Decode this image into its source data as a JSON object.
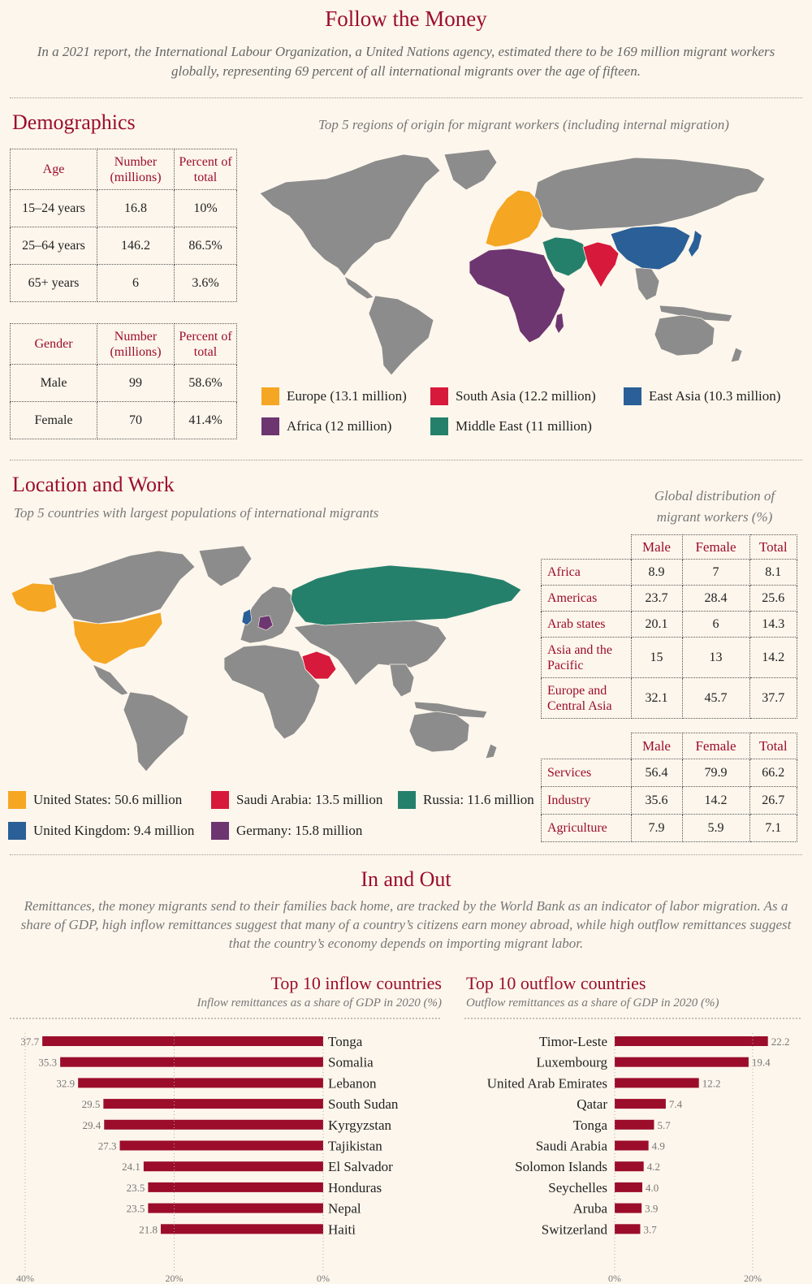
{
  "header": {
    "title": "Follow the Money",
    "intro": "In a 2021 report, the International Labour Organization, a United Nations agency, estimated there to be 169 million migrant workers globally, representing 69 percent of all international migrants over the age of fifteen."
  },
  "demographics": {
    "title": "Demographics",
    "age_table": {
      "headers": [
        "Age",
        "Number (millions)",
        "Percent of total"
      ],
      "rows": [
        [
          "15–24 years",
          "16.8",
          "10%"
        ],
        [
          "25–64 years",
          "146.2",
          "86.5%"
        ],
        [
          "65+ years",
          "6",
          "3.6%"
        ]
      ]
    },
    "gender_table": {
      "headers": [
        "Gender",
        "Number (millions)",
        "Percent of total"
      ],
      "rows": [
        [
          "Male",
          "99",
          "58.6%"
        ],
        [
          "Female",
          "70",
          "41.4%"
        ]
      ]
    },
    "map_title": "Top 5 regions of origin for migrant workers (including internal migration)",
    "legend": [
      {
        "label": "Europe (13.1 million)",
        "color": "#f5a623"
      },
      {
        "label": "South Asia (12.2 million)",
        "color": "#d7193b"
      },
      {
        "label": "East Asia (10.3 million)",
        "color": "#2a5f97"
      },
      {
        "label": "Africa (12 million)",
        "color": "#6d3670"
      },
      {
        "label": "Middle East (11 million)",
        "color": "#25806b"
      }
    ]
  },
  "location": {
    "title": "Location and Work",
    "subtitle": "Top 5 countries with largest populations of international migrants",
    "legend": [
      {
        "label": "United States: 50.6 million",
        "color": "#f5a623"
      },
      {
        "label": "Saudi Arabia: 13.5 million",
        "color": "#d7193b"
      },
      {
        "label": "Russia: 11.6 million",
        "color": "#25806b"
      },
      {
        "label": "United Kingdom: 9.4 million",
        "color": "#2a5f97"
      },
      {
        "label": "Germany: 15.8 million",
        "color": "#6d3670"
      }
    ],
    "dist_title": "Global distribution of migrant workers (%)",
    "region_table": {
      "headers": [
        "Male",
        "Female",
        "Total"
      ],
      "rows": [
        [
          "Africa",
          "8.9",
          "7",
          "8.1"
        ],
        [
          "Americas",
          "23.7",
          "28.4",
          "25.6"
        ],
        [
          "Arab states",
          "20.1",
          "6",
          "14.3"
        ],
        [
          "Asia and the Pacific",
          "15",
          "13",
          "14.2"
        ],
        [
          "Europe and Central Asia",
          "32.1",
          "45.7",
          "37.7"
        ]
      ]
    },
    "sector_table": {
      "headers": [
        "Male",
        "Female",
        "Total"
      ],
      "rows": [
        [
          "Services",
          "56.4",
          "79.9",
          "66.2"
        ],
        [
          "Industry",
          "35.6",
          "14.2",
          "26.7"
        ],
        [
          "Agriculture",
          "7.9",
          "5.9",
          "7.1"
        ]
      ]
    }
  },
  "inout": {
    "title": "In and Out",
    "text": "Remittances, the money migrants send to their families back home, are tracked by the World Bank as an indicator of labor migration. As a share of GDP, high inflow remittances suggest that many of a country’s citizens earn money abroad, while high outflow remittances suggest that the country’s economy depends on importing migrant labor."
  },
  "colors": {
    "accent": "#9b0d2b",
    "bar": "#9b0d2b",
    "map_gray": "#8c8c8c",
    "background": "#fdf6ec"
  },
  "chart_data": [
    {
      "type": "bar",
      "orientation": "horizontal",
      "title": "Top 10 inflow countries",
      "subtitle": "Inflow remittances as a share of GDP in 2020 (%)",
      "categories": [
        "Tonga",
        "Somalia",
        "Lebanon",
        "South Sudan",
        "Kyrgyzstan",
        "Tajikistan",
        "El Salvador",
        "Honduras",
        "Nepal",
        "Haiti"
      ],
      "values": [
        37.7,
        35.3,
        32.9,
        29.5,
        29.4,
        27.3,
        24.1,
        23.5,
        23.5,
        21.8
      ],
      "value_labels": [
        "37.7",
        "35.3",
        "32.9",
        "29.5",
        "29.4",
        "27.3",
        "24.1",
        "23.5",
        "23.5",
        "21.8"
      ],
      "xlim": [
        0,
        40
      ],
      "xticks": [
        "40%",
        "20%",
        "0%"
      ],
      "x_reversed": true
    },
    {
      "type": "bar",
      "orientation": "horizontal",
      "title": "Top 10 outflow countries",
      "subtitle": "Outflow remittances as a share of GDP in 2020 (%)",
      "categories": [
        "Timor-Leste",
        "Luxembourg",
        "United Arab Emirates",
        "Qatar",
        "Tonga",
        "Saudi Arabia",
        "Solomon Islands",
        "Seychelles",
        "Aruba",
        "Switzerland"
      ],
      "values": [
        22.2,
        19.4,
        12.2,
        7.4,
        5.7,
        4.9,
        4.2,
        4.0,
        3.9,
        3.7
      ],
      "value_labels": [
        "22.2",
        "19.4",
        "12.2",
        "7.4",
        "5.7",
        "4.9",
        "4.2",
        "4.0",
        "3.9",
        "3.7"
      ],
      "xlim": [
        0,
        20
      ],
      "xticks": [
        "0%",
        "20%"
      ]
    }
  ]
}
